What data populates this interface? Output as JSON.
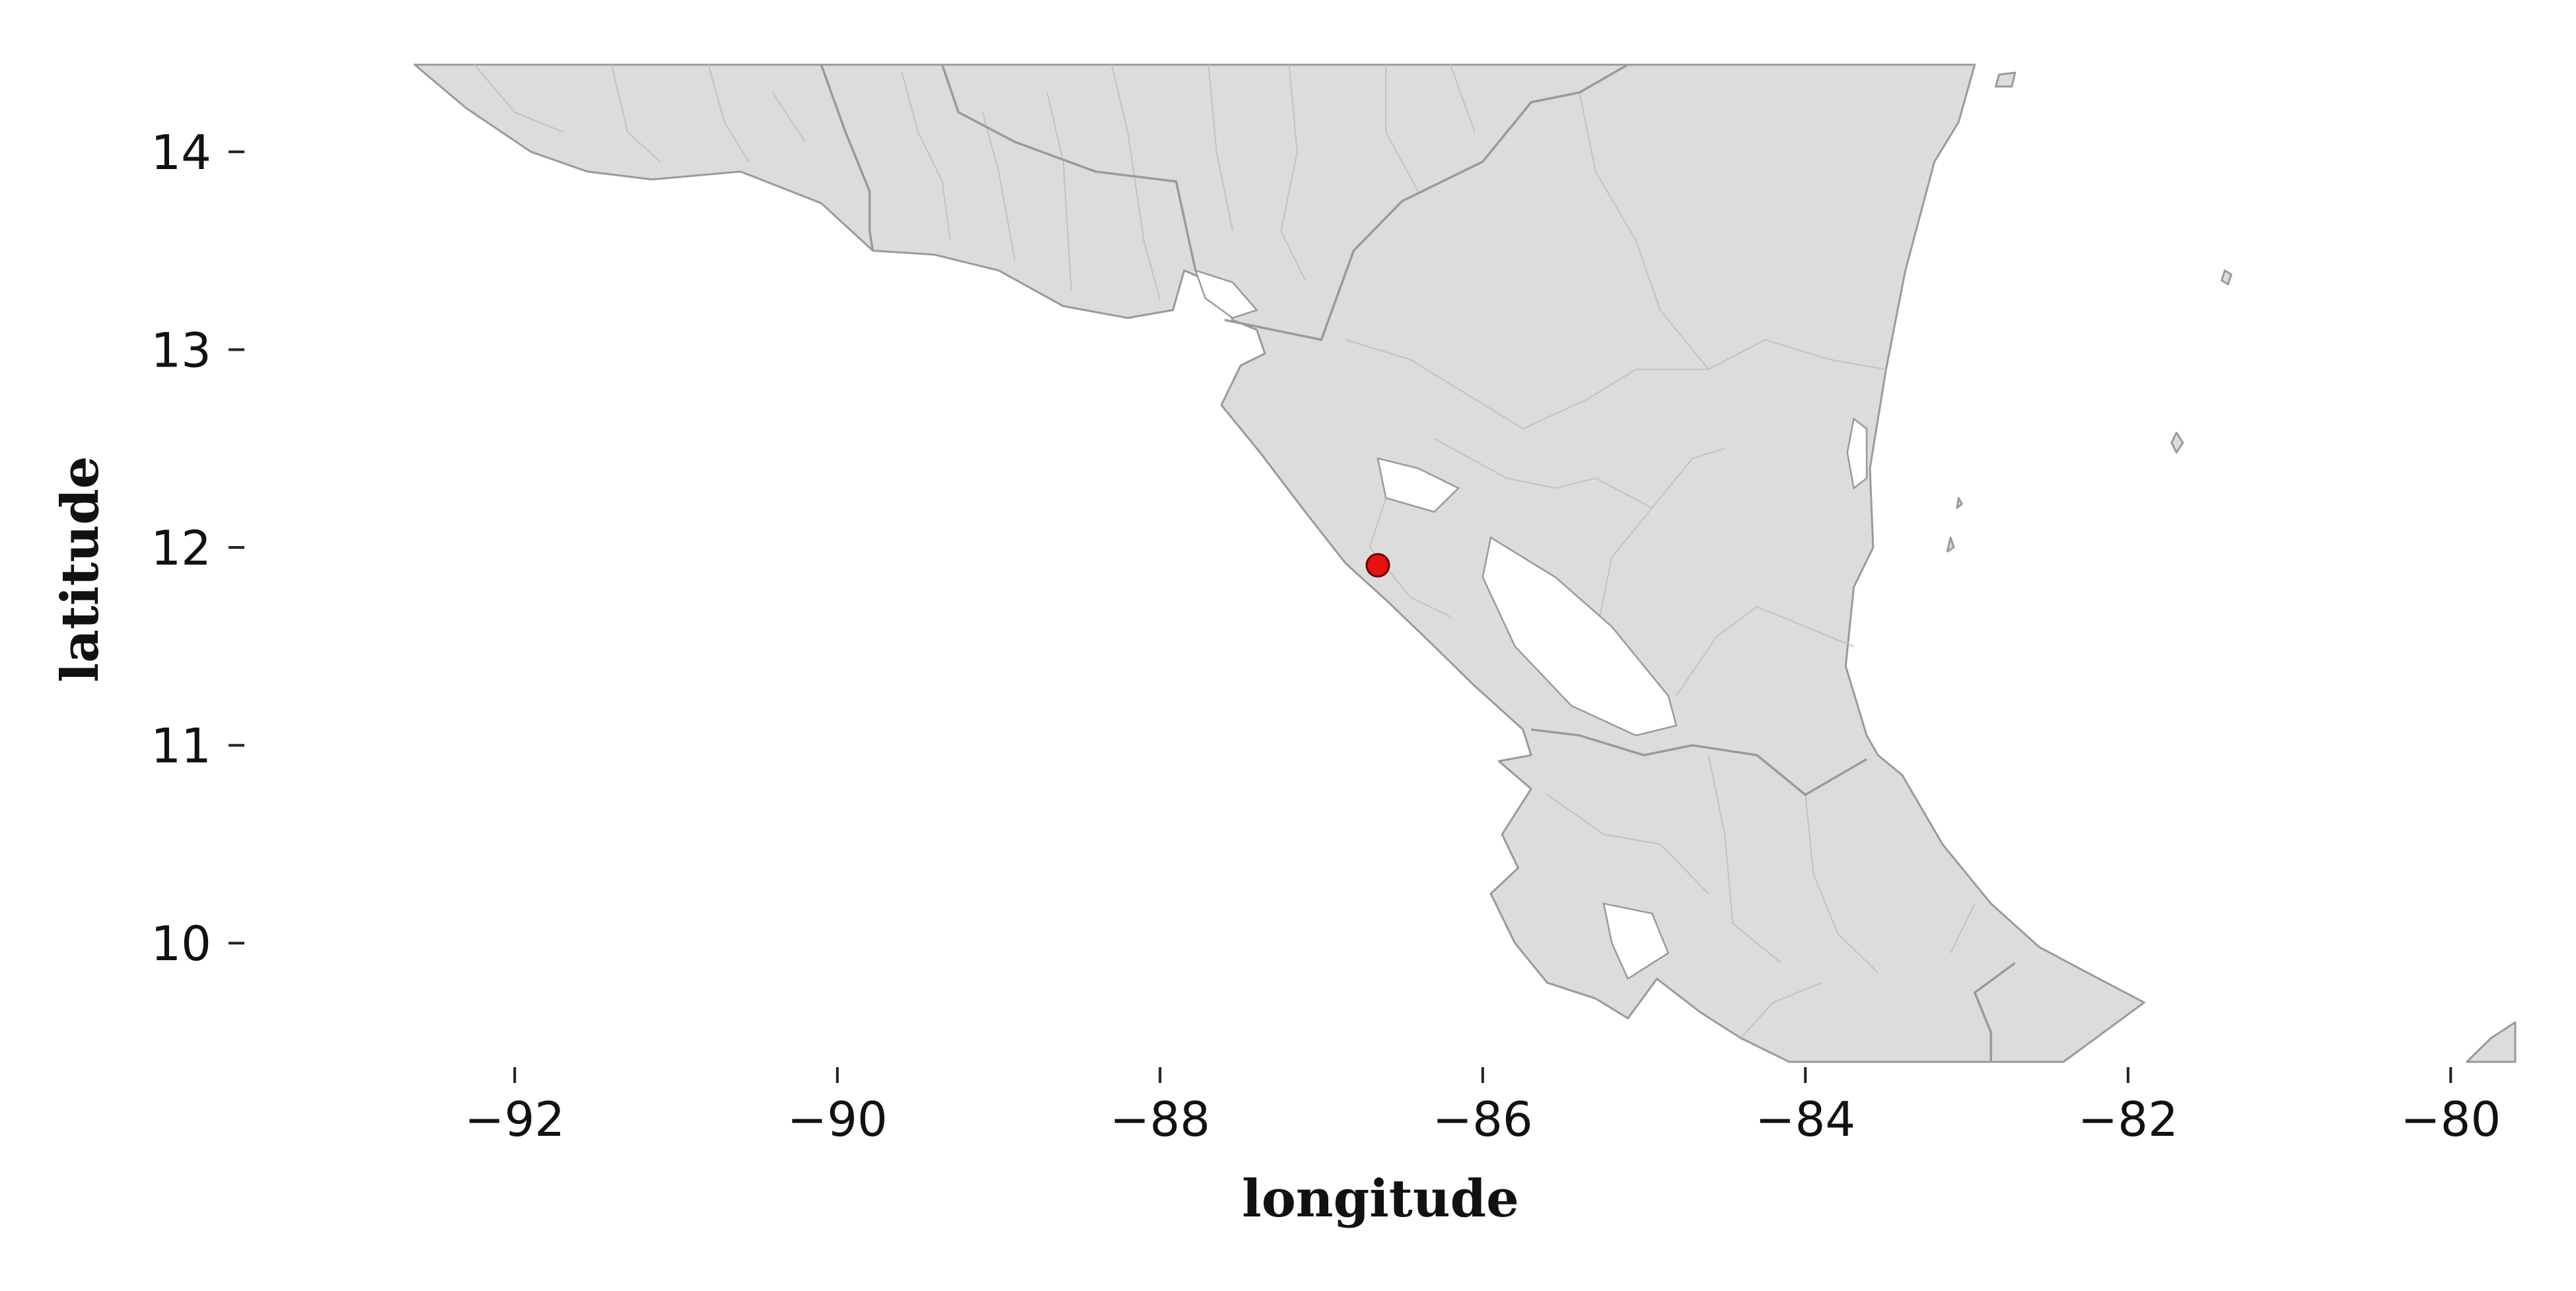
{
  "map": {
    "xlabel": "longitude",
    "ylabel": "latitude",
    "xlim": [
      -93.0,
      -79.6
    ],
    "ylim": [
      9.4,
      14.4
    ],
    "xticks": [
      -92,
      -90,
      -88,
      -86,
      -84,
      -82,
      -80
    ],
    "yticks": [
      10,
      11,
      12,
      13,
      14
    ],
    "xtick_labels": [
      "−92",
      "−90",
      "−88",
      "−86",
      "−84",
      "−82",
      "−80"
    ],
    "ytick_labels": [
      "10",
      "11",
      "12",
      "13",
      "14"
    ],
    "land_color": "#dcdcdc",
    "border_color": "#9a9a9a",
    "marker": {
      "lon": -86.65,
      "lat": 11.91,
      "color": "#e81010",
      "edge_color": "#6a0000"
    }
  }
}
